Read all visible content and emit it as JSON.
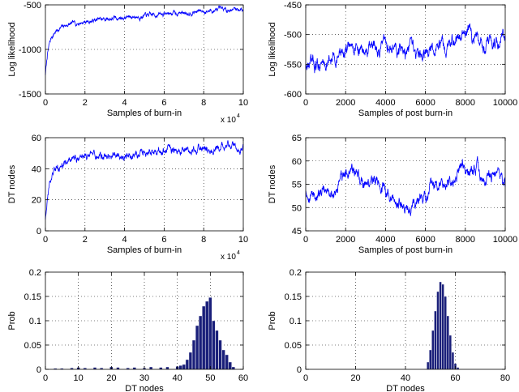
{
  "chart_data": [
    {
      "id": "p1",
      "type": "line",
      "xlabel": "Samples of burn-in",
      "ylabel": "Log likelihood",
      "xlim": [
        0,
        100000
      ],
      "ylim": [
        -1500,
        -500
      ],
      "xticks": [
        0,
        20000,
        40000,
        60000,
        80000,
        100000
      ],
      "xtick_labels": [
        "0",
        "2",
        "4",
        "6",
        "8",
        "10"
      ],
      "x_exponent": "x 10",
      "x_exponent_power": "4",
      "yticks": [
        -1500,
        -1000,
        -500
      ],
      "ytick_labels": [
        "-1500",
        "-1000",
        "-500"
      ],
      "grid": "dotted",
      "color": "#0000ff",
      "series": [
        {
          "x": [
            0,
            500,
            1000,
            2000,
            3000,
            5000,
            7000,
            10000,
            15000,
            20000,
            30000,
            40000,
            50000,
            60000,
            70000,
            80000,
            90000,
            95000,
            100000
          ],
          "y": [
            -1280,
            -1170,
            -1060,
            -940,
            -870,
            -800,
            -770,
            -730,
            -710,
            -690,
            -660,
            -640,
            -625,
            -600,
            -585,
            -570,
            -560,
            -545,
            -550
          ]
        }
      ]
    },
    {
      "id": "p2",
      "type": "line",
      "xlabel": "Samples of post burn-in",
      "ylabel": "Log likelihood",
      "xlim": [
        0,
        10000
      ],
      "ylim": [
        -600,
        -450
      ],
      "xticks": [
        0,
        2000,
        4000,
        6000,
        8000,
        10000
      ],
      "xtick_labels": [
        "0",
        "2000",
        "4000",
        "6000",
        "8000",
        "10000"
      ],
      "yticks": [
        -600,
        -550,
        -500,
        -450
      ],
      "ytick_labels": [
        "-600",
        "-550",
        "-500",
        "-450"
      ],
      "grid": "dotted",
      "color": "#0000ff",
      "series": [
        {
          "x": [
            0,
            500,
            1000,
            1500,
            2000,
            2500,
            3000,
            3500,
            4000,
            4500,
            5000,
            5500,
            6000,
            6500,
            7000,
            7500,
            7800,
            8000,
            8500,
            9000,
            9500,
            10000
          ],
          "y": [
            -555,
            -550,
            -548,
            -540,
            -525,
            -520,
            -530,
            -525,
            -520,
            -525,
            -530,
            -535,
            -540,
            -520,
            -515,
            -505,
            -495,
            -500,
            -505,
            -510,
            -515,
            -505
          ]
        }
      ]
    },
    {
      "id": "p3",
      "type": "line",
      "xlabel": "Samples of burn-in",
      "ylabel": "DT nodes",
      "xlim": [
        0,
        100000
      ],
      "ylim": [
        0,
        60
      ],
      "xticks": [
        0,
        20000,
        40000,
        60000,
        80000,
        100000
      ],
      "xtick_labels": [
        "0",
        "2",
        "4",
        "6",
        "8",
        "10"
      ],
      "x_exponent": "x 10",
      "x_exponent_power": "4",
      "yticks": [
        0,
        20,
        40,
        60
      ],
      "ytick_labels": [
        "0",
        "20",
        "40",
        "60"
      ],
      "grid": "dotted",
      "color": "#0000ff",
      "series": [
        {
          "x": [
            0,
            500,
            1000,
            2000,
            3000,
            5000,
            7000,
            10000,
            15000,
            20000,
            25000,
            30000,
            40000,
            50000,
            60000,
            70000,
            80000,
            90000,
            95000,
            100000
          ],
          "y": [
            8,
            16,
            22,
            30,
            34,
            39,
            41,
            44,
            47,
            48,
            47,
            49,
            48,
            50,
            51,
            52,
            53,
            54,
            55,
            52
          ]
        }
      ]
    },
    {
      "id": "p4",
      "type": "line",
      "xlabel": "Samples of post burn-in",
      "ylabel": "DT nodes",
      "xlim": [
        0,
        10000
      ],
      "ylim": [
        45,
        65
      ],
      "xticks": [
        0,
        2000,
        4000,
        6000,
        8000,
        10000
      ],
      "xtick_labels": [
        "0",
        "2000",
        "4000",
        "6000",
        "8000",
        "10000"
      ],
      "yticks": [
        45,
        50,
        55,
        60,
        65
      ],
      "ytick_labels": [
        "45",
        "50",
        "55",
        "60",
        "65"
      ],
      "grid": "dotted",
      "color": "#0000ff",
      "series": [
        {
          "x": [
            0,
            300,
            700,
            1000,
            1500,
            2000,
            2300,
            2600,
            3000,
            3500,
            4000,
            4500,
            5000,
            5500,
            6000,
            6500,
            7000,
            7500,
            7800,
            8200,
            8600,
            9000,
            9500,
            10000
          ],
          "y": [
            54,
            53,
            52,
            54,
            53,
            57,
            58,
            56,
            55,
            56,
            54,
            52,
            50,
            51,
            53,
            55,
            55,
            57,
            60,
            58,
            58,
            56,
            57,
            56
          ]
        }
      ]
    },
    {
      "id": "p5",
      "type": "bar",
      "xlabel": "DT nodes",
      "ylabel": "Prob",
      "xlim": [
        0,
        60
      ],
      "ylim": [
        0,
        0.2
      ],
      "xticks": [
        0,
        10,
        20,
        30,
        40,
        50,
        60
      ],
      "xtick_labels": [
        "0",
        "10",
        "20",
        "30",
        "40",
        "50",
        "60"
      ],
      "yticks": [
        0,
        0.05,
        0.1,
        0.15,
        0.2
      ],
      "ytick_labels": [
        "0",
        "0.05",
        "0.1",
        "0.15",
        "0.2"
      ],
      "grid": "dotted",
      "color": "#1a1f7a",
      "bars": {
        "x": [
          3,
          5,
          8,
          10,
          12,
          15,
          17,
          20,
          22,
          25,
          27,
          30,
          32,
          35,
          37,
          40,
          41,
          42,
          43,
          44,
          45,
          46,
          47,
          48,
          49,
          50,
          51,
          52,
          53,
          54,
          55,
          56,
          57
        ],
        "values": [
          0.002,
          0.002,
          0.003,
          0.004,
          0.003,
          0.004,
          0.003,
          0.005,
          0.004,
          0.003,
          0.004,
          0.003,
          0.005,
          0.004,
          0.005,
          0.006,
          0.008,
          0.01,
          0.02,
          0.035,
          0.06,
          0.09,
          0.11,
          0.13,
          0.14,
          0.148,
          0.1,
          0.08,
          0.06,
          0.04,
          0.03,
          0.015,
          0.005
        ]
      }
    },
    {
      "id": "p6",
      "type": "bar",
      "xlabel": "DT nodes",
      "ylabel": "Prob",
      "xlim": [
        0,
        80
      ],
      "ylim": [
        0,
        0.2
      ],
      "xticks": [
        0,
        20,
        40,
        60,
        80
      ],
      "xtick_labels": [
        "0",
        "20",
        "40",
        "60",
        "80"
      ],
      "yticks": [
        0,
        0.05,
        0.1,
        0.15,
        0.2
      ],
      "ytick_labels": [
        "0",
        "0.05",
        "0.1",
        "0.15",
        "0.2"
      ],
      "grid": "dotted",
      "color": "#1a1f7a",
      "bars": {
        "x": [
          49,
          50,
          51,
          52,
          53,
          54,
          55,
          56,
          57,
          58,
          59,
          60,
          61
        ],
        "values": [
          0.015,
          0.04,
          0.08,
          0.12,
          0.16,
          0.18,
          0.175,
          0.15,
          0.11,
          0.07,
          0.035,
          0.012,
          0.004
        ]
      }
    }
  ]
}
